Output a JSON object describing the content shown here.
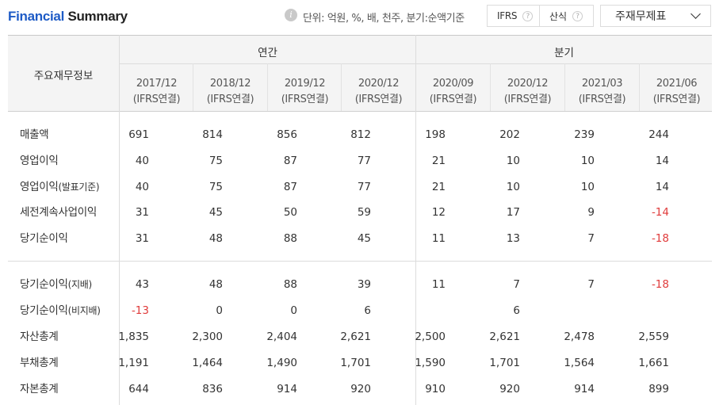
{
  "header": {
    "title_part1": "Financial",
    "title_part2": "Summary",
    "info_icon": "i",
    "unit_text": "단위: 억원, %, 배, 천주, 분기:순액기준",
    "ifrs_label": "IFRS",
    "calc_label": "산식",
    "help_icon": "?",
    "select_value": "주재무제표"
  },
  "table": {
    "row_header": "주요재무정보",
    "group_annual": "연간",
    "group_quarter": "분기",
    "columns": [
      {
        "date": "2017/12",
        "basis": "(IFRS연결)"
      },
      {
        "date": "2018/12",
        "basis": "(IFRS연결)"
      },
      {
        "date": "2019/12",
        "basis": "(IFRS연결)"
      },
      {
        "date": "2020/12",
        "basis": "(IFRS연결)"
      },
      {
        "date": "2020/09",
        "basis": "(IFRS연결)"
      },
      {
        "date": "2020/12",
        "basis": "(IFRS연결)"
      },
      {
        "date": "2021/03",
        "basis": "(IFRS연결)"
      },
      {
        "date": "2021/06",
        "basis": "(IFRS연결)"
      }
    ],
    "rows": [
      {
        "label": "매출액",
        "label_sub": "",
        "values": [
          "691",
          "814",
          "856",
          "812",
          "198",
          "202",
          "239",
          "244"
        ]
      },
      {
        "label": "영업이익",
        "label_sub": "",
        "values": [
          "40",
          "75",
          "87",
          "77",
          "21",
          "10",
          "10",
          "14"
        ]
      },
      {
        "label": "영업이익",
        "label_sub": "(발표기준)",
        "values": [
          "40",
          "75",
          "87",
          "77",
          "21",
          "10",
          "10",
          "14"
        ]
      },
      {
        "label": "세전계속사업이익",
        "label_sub": "",
        "values": [
          "31",
          "45",
          "50",
          "59",
          "12",
          "17",
          "9",
          "-14"
        ]
      },
      {
        "label": "당기순이익",
        "label_sub": "",
        "values": [
          "31",
          "48",
          "88",
          "45",
          "11",
          "13",
          "7",
          "-18"
        ]
      },
      {
        "label": "당기순이익",
        "label_sub": "(지배)",
        "values": [
          "43",
          "48",
          "88",
          "39",
          "11",
          "7",
          "7",
          "-18"
        ]
      },
      {
        "label": "당기순이익",
        "label_sub": "(비지배)",
        "values": [
          "-13",
          "0",
          "0",
          "6",
          "",
          "6",
          "",
          ""
        ]
      },
      {
        "label": "자산총계",
        "label_sub": "",
        "values": [
          "1,835",
          "2,300",
          "2,404",
          "2,621",
          "2,500",
          "2,621",
          "2,478",
          "2,559"
        ]
      },
      {
        "label": "부채총계",
        "label_sub": "",
        "values": [
          "1,191",
          "1,464",
          "1,490",
          "1,701",
          "1,590",
          "1,701",
          "1,564",
          "1,661"
        ]
      },
      {
        "label": "자본총계",
        "label_sub": "",
        "values": [
          "644",
          "836",
          "914",
          "920",
          "910",
          "920",
          "914",
          "899"
        ]
      }
    ]
  },
  "colors": {
    "brand_blue": "#1e5bc6",
    "negative": "#e03b3b",
    "header_bg": "#f4f4f4",
    "border": "#d6d6d6"
  }
}
